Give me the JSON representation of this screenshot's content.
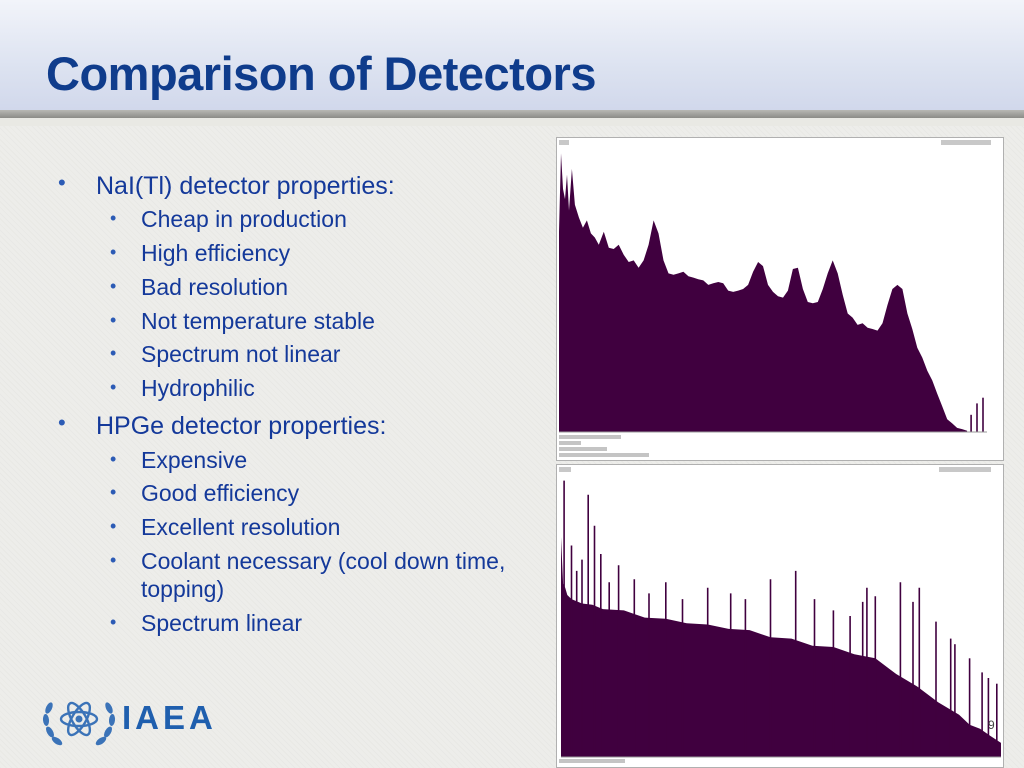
{
  "slide": {
    "title": "Comparison of Detectors",
    "page_number": "9"
  },
  "bullets": {
    "nai": {
      "heading": "NaI(Tl) detector properties:",
      "items": [
        "Cheap in production",
        "High efficiency",
        "Bad resolution",
        "Not temperature stable",
        "Spectrum not linear",
        "Hydrophilic"
      ]
    },
    "hpge": {
      "heading": "HPGe detector properties:",
      "items": [
        "Expensive",
        "Good efficiency",
        "Excellent resolution",
        "Coolant necessary (cool down time,",
        "topping)",
        "Spectrum linear"
      ]
    }
  },
  "logo": {
    "text": "IAEA",
    "icon": "iaea-atom-olive-wreath-icon"
  },
  "colors": {
    "title": "#0f3c8c",
    "bullet_text": "#14399a",
    "spectrum_fill": "#40003f",
    "logo": "#1f5fae"
  },
  "chart_data": [
    {
      "type": "area",
      "detector": "NaI(Tl)",
      "x": [
        0,
        2,
        4,
        6,
        8,
        10,
        13,
        16,
        20,
        24,
        28,
        32,
        36,
        40,
        45,
        50,
        55,
        60,
        65,
        70,
        75,
        80,
        85,
        90,
        95,
        100,
        105,
        110,
        115,
        120,
        125,
        130,
        135,
        140,
        145,
        150,
        155,
        160,
        165,
        170,
        175,
        180,
        185,
        190,
        195,
        200,
        205,
        210,
        215,
        220,
        225,
        230,
        235,
        240,
        245,
        250,
        255,
        260,
        265,
        270,
        275,
        280,
        285,
        290,
        295,
        300,
        305,
        310,
        315,
        320,
        325,
        330,
        335,
        340,
        345,
        350,
        355,
        360,
        365,
        370,
        375,
        380,
        385,
        390,
        395,
        400,
        405,
        410
      ],
      "values": [
        0.7,
        0.98,
        0.85,
        0.82,
        0.9,
        0.78,
        0.92,
        0.8,
        0.75,
        0.72,
        0.74,
        0.7,
        0.68,
        0.66,
        0.7,
        0.65,
        0.64,
        0.66,
        0.62,
        0.6,
        0.6,
        0.58,
        0.6,
        0.66,
        0.74,
        0.7,
        0.6,
        0.56,
        0.55,
        0.56,
        0.56,
        0.55,
        0.54,
        0.54,
        0.53,
        0.52,
        0.52,
        0.53,
        0.52,
        0.5,
        0.49,
        0.5,
        0.5,
        0.52,
        0.56,
        0.6,
        0.58,
        0.52,
        0.49,
        0.48,
        0.47,
        0.5,
        0.57,
        0.58,
        0.5,
        0.46,
        0.45,
        0.46,
        0.5,
        0.56,
        0.6,
        0.56,
        0.48,
        0.42,
        0.4,
        0.38,
        0.38,
        0.37,
        0.36,
        0.36,
        0.38,
        0.45,
        0.5,
        0.52,
        0.5,
        0.42,
        0.36,
        0.3,
        0.26,
        0.22,
        0.18,
        0.14,
        0.09,
        0.05,
        0.03,
        0.02,
        0.01,
        0.01
      ],
      "spikes": [
        [
          414,
          0.06
        ],
        [
          420,
          0.1
        ],
        [
          426,
          0.12
        ]
      ]
    },
    {
      "type": "area",
      "detector": "HPGe",
      "x": [
        0,
        2,
        4,
        6,
        10,
        20,
        30,
        40,
        60,
        80,
        100,
        120,
        140,
        160,
        180,
        200,
        220,
        240,
        260,
        280,
        300,
        320,
        340,
        360,
        380,
        390,
        400,
        410,
        420
      ],
      "values": [
        0.78,
        0.62,
        0.6,
        0.58,
        0.56,
        0.55,
        0.54,
        0.53,
        0.52,
        0.5,
        0.49,
        0.48,
        0.47,
        0.46,
        0.45,
        0.43,
        0.42,
        0.4,
        0.39,
        0.37,
        0.35,
        0.3,
        0.25,
        0.2,
        0.15,
        0.12,
        0.1,
        0.08,
        0.05
      ],
      "spikes": [
        [
          3,
          0.98
        ],
        [
          10,
          0.75
        ],
        [
          15,
          0.66
        ],
        [
          20,
          0.7
        ],
        [
          26,
          0.93
        ],
        [
          32,
          0.82
        ],
        [
          38,
          0.72
        ],
        [
          46,
          0.62
        ],
        [
          55,
          0.68
        ],
        [
          70,
          0.63
        ],
        [
          84,
          0.58
        ],
        [
          100,
          0.62
        ],
        [
          116,
          0.56
        ],
        [
          140,
          0.6
        ],
        [
          162,
          0.58
        ],
        [
          176,
          0.56
        ],
        [
          200,
          0.63
        ],
        [
          224,
          0.66
        ],
        [
          242,
          0.56
        ],
        [
          260,
          0.52
        ],
        [
          276,
          0.5
        ],
        [
          288,
          0.55
        ],
        [
          292,
          0.6
        ],
        [
          300,
          0.57
        ],
        [
          324,
          0.62
        ],
        [
          336,
          0.55
        ],
        [
          342,
          0.6
        ],
        [
          358,
          0.48
        ],
        [
          372,
          0.42
        ],
        [
          376,
          0.4
        ],
        [
          390,
          0.35
        ],
        [
          402,
          0.3
        ],
        [
          408,
          0.28
        ],
        [
          416,
          0.26
        ]
      ]
    }
  ]
}
